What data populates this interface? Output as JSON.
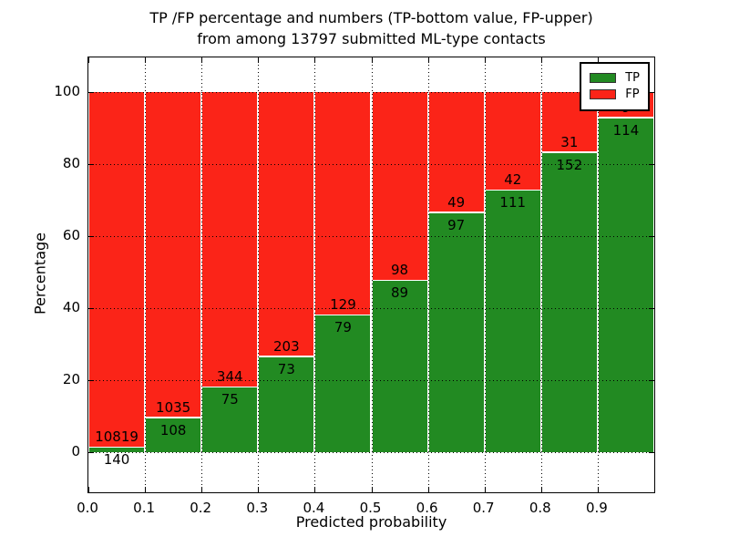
{
  "chart_data": {
    "type": "bar",
    "stacked": true,
    "normalized_to_percent": true,
    "title_lines": [
      "TP /FP percentage and numbers (TP-bottom value, FP-upper)",
      "from among 13797 submitted ML-type contacts"
    ],
    "title": "TP /FP percentage and numbers (TP-bottom value, FP-upper)\nfrom among 13797 submitted ML-type contacts",
    "total_contacts": 13797,
    "xlabel": "Predicted probability",
    "ylabel": "Percentage",
    "bins": [
      "0.0-0.1",
      "0.1-0.2",
      "0.2-0.3",
      "0.3-0.4",
      "0.4-0.5",
      "0.5-0.6",
      "0.6-0.7",
      "0.7-0.8",
      "0.8-0.9",
      "0.9-1.0"
    ],
    "bin_starts": [
      0.0,
      0.1,
      0.2,
      0.3,
      0.4,
      0.5,
      0.6,
      0.7,
      0.8,
      0.9
    ],
    "bin_width": 0.1,
    "series": [
      {
        "name": "TP",
        "color": "#228a22",
        "counts": [
          140,
          108,
          75,
          73,
          79,
          89,
          97,
          111,
          152,
          114
        ]
      },
      {
        "name": "FP",
        "color": "#fb2418",
        "counts": [
          10819,
          1035,
          344,
          203,
          129,
          98,
          49,
          42,
          31,
          9
        ]
      }
    ],
    "tp_percent_of_bin": [
      1.3,
      9.4,
      17.9,
      26.4,
      38.0,
      47.6,
      66.4,
      72.5,
      83.1,
      92.7
    ],
    "xticks": [
      "0.0",
      "0.1",
      "0.2",
      "0.3",
      "0.4",
      "0.5",
      "0.6",
      "0.7",
      "0.8",
      "0.9"
    ],
    "yticks": [
      "0",
      "20",
      "40",
      "60",
      "80",
      "100"
    ],
    "xlim": [
      0.0,
      1.0
    ],
    "ylim": [
      -11.1,
      109.6
    ],
    "grid": true,
    "grid_style": "dotted",
    "legend": {
      "position": "upper right",
      "entries": [
        {
          "label": "TP",
          "color": "#228a22"
        },
        {
          "label": "FP",
          "color": "#fb2418"
        }
      ]
    }
  }
}
